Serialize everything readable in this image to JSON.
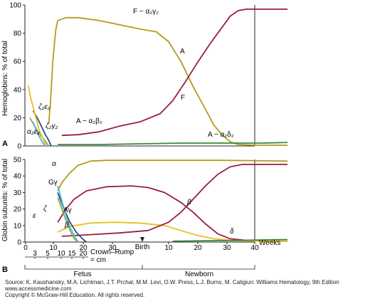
{
  "panels": {
    "a_label": "A",
    "b_label": "B"
  },
  "chart_data": [
    {
      "type": "line",
      "panel": "A",
      "ylabel": "Hemoglobins: % of total",
      "ylim": [
        0,
        100
      ],
      "yticks": [
        "0",
        "20",
        "40",
        "60",
        "80",
        "100"
      ],
      "series": [
        {
          "label": "F − α₂γ₂",
          "color": "#b79a1c",
          "points": [
            [
              -2.2,
              16
            ],
            [
              -1.8,
              30
            ],
            [
              -1.2,
              60
            ],
            [
              -0.5,
              82
            ],
            [
              0,
              89
            ],
            [
              2,
              91
            ],
            [
              5,
              91
            ],
            [
              10,
              89
            ],
            [
              15,
              86
            ],
            [
              20,
              83
            ],
            [
              24,
              81
            ],
            [
              27,
              74
            ],
            [
              30,
              60
            ],
            [
              33,
              42
            ],
            [
              36,
              26
            ],
            [
              38,
              15
            ],
            [
              40,
              8
            ],
            [
              42,
              3
            ],
            [
              44,
              1
            ],
            [
              48,
              0.5
            ],
            [
              52,
              0.5
            ],
            [
              56,
              0.5
            ]
          ]
        },
        {
          "label": "A",
          "color": "#9b1b4a",
          "points": [
            [
              1,
              7.5
            ],
            [
              5,
              8
            ],
            [
              10,
              10
            ],
            [
              15,
              14
            ],
            [
              20,
              17
            ],
            [
              25,
              23
            ],
            [
              28,
              32
            ],
            [
              31,
              45
            ],
            [
              34,
              59
            ],
            [
              37,
              72
            ],
            [
              40,
              84
            ],
            [
              42,
              92
            ],
            [
              44,
              96
            ],
            [
              46,
              97
            ],
            [
              56,
              97
            ]
          ]
        },
        {
          "label": "A − α₂β₂",
          "color": "#9b1b4a",
          "points": []
        },
        {
          "label": "A − α₂δ₂",
          "color": "#3a8a3a",
          "points": [
            [
              0,
              1
            ],
            [
              10,
              1
            ],
            [
              20,
              1.5
            ],
            [
              30,
              2
            ],
            [
              40,
              2
            ],
            [
              50,
              2
            ],
            [
              56,
              2.5
            ]
          ]
        },
        {
          "label": "ζ₂ε₂",
          "color": "#2b4d8a",
          "points": [
            [
              -6,
              25
            ],
            [
              -5,
              20
            ],
            [
              -4,
              14
            ],
            [
              -3,
              8
            ],
            [
              -2.2,
              4
            ],
            [
              -1.6,
              0
            ]
          ]
        },
        {
          "label": "ζ₂γ₂",
          "color": "#8ea94a",
          "points": [
            [
              -6.8,
              20
            ],
            [
              -5.8,
              15
            ],
            [
              -4.6,
              9
            ],
            [
              -3.2,
              4
            ],
            [
              -2.2,
              0
            ]
          ]
        },
        {
          "label": "α₂ε₂",
          "color": "#e8c020",
          "points": [
            [
              -7.2,
              43
            ],
            [
              -6.5,
              33
            ],
            [
              -5.5,
              22
            ],
            [
              -4.6,
              12
            ],
            [
              -3.6,
              5
            ],
            [
              -2.8,
              0
            ]
          ]
        },
        {
          "label": "",
          "color": "#55b6d6",
          "points": [
            [
              -6,
              17
            ],
            [
              -5.2,
              11
            ],
            [
              -4.4,
              6
            ],
            [
              -3.6,
              2
            ],
            [
              -3,
              0
            ]
          ]
        }
      ]
    },
    {
      "type": "line",
      "panel": "B",
      "ylabel": "Globin subunits: % of total",
      "ylim": [
        0,
        50
      ],
      "yticks": [
        "0",
        "10",
        "20",
        "30",
        "40",
        "50"
      ],
      "xticks": [
        "0",
        "10",
        "20",
        "30",
        "Birth",
        "10",
        "20",
        "30",
        "40"
      ],
      "xunit": "Weeks",
      "fetal_ticks": [
        "3",
        "5",
        "10",
        "15",
        "20"
      ],
      "crown_rump": {
        "line1": "Crown–Rump",
        "line2": "= cm"
      },
      "periods": [
        "Fetus",
        "Newborn"
      ],
      "series": [
        {
          "label": "α",
          "color": "#b79a1c",
          "points": [
            [
              0,
              31
            ],
            [
              1,
              36
            ],
            [
              3,
              42
            ],
            [
              5,
              46.5
            ],
            [
              8,
              49
            ],
            [
              12,
              49.5
            ],
            [
              20,
              49.5
            ],
            [
              40,
              49.5
            ],
            [
              56,
              49
            ]
          ]
        },
        {
          "label": "Gγ",
          "color": "#9b1b4a",
          "points": [
            [
              0,
              12
            ],
            [
              2,
              20
            ],
            [
              4,
              26
            ],
            [
              7,
              31
            ],
            [
              12,
              33.5
            ],
            [
              18,
              34
            ],
            [
              22,
              33
            ],
            [
              26,
              30
            ],
            [
              30,
              24
            ],
            [
              33,
              18
            ],
            [
              36,
              11
            ],
            [
              39,
              5
            ],
            [
              42,
              2
            ],
            [
              46,
              1
            ],
            [
              50,
              0.5
            ],
            [
              56,
              0.5
            ]
          ]
        },
        {
          "label": "Aγ",
          "color": "#e8c020",
          "points": [
            [
              0,
              6
            ],
            [
              3,
              9.5
            ],
            [
              8,
              11.5
            ],
            [
              14,
              12
            ],
            [
              20,
              11.5
            ],
            [
              26,
              10
            ],
            [
              30,
              7
            ],
            [
              34,
              4
            ],
            [
              38,
              2
            ],
            [
              42,
              1
            ],
            [
              50,
              0.5
            ],
            [
              56,
              0.5
            ]
          ]
        },
        {
          "label": "β",
          "color": "#9b1b4a",
          "points": [
            [
              1,
              3.5
            ],
            [
              8,
              4.5
            ],
            [
              15,
              5.5
            ],
            [
              22,
              7
            ],
            [
              27,
              12
            ],
            [
              30,
              18
            ],
            [
              33,
              26
            ],
            [
              36,
              34
            ],
            [
              39,
              41
            ],
            [
              42,
              45.5
            ],
            [
              45,
              47
            ],
            [
              56,
              47
            ]
          ]
        },
        {
          "label": "δ",
          "color": "#3a8a3a",
          "points": [
            [
              28,
              0.5
            ],
            [
              36,
              0.8
            ],
            [
              44,
              1
            ],
            [
              50,
              1.3
            ],
            [
              56,
              1.5
            ]
          ]
        },
        {
          "label": "ζ",
          "color": "#2b4d8a",
          "points": [
            [
              0,
              30
            ],
            [
              1.5,
              20
            ],
            [
              3,
              12
            ],
            [
              4.5,
              6
            ],
            [
              6,
              2
            ],
            [
              7,
              0
            ]
          ]
        },
        {
          "label": "ε",
          "color": "#55b6d6",
          "points": [
            [
              0,
              34
            ],
            [
              1,
              25
            ],
            [
              2,
              16
            ],
            [
              3,
              9
            ],
            [
              4.2,
              3
            ],
            [
              5,
              0
            ]
          ]
        },
        {
          "label": "",
          "color": "#8ea94a",
          "points": [
            [
              0,
              27
            ],
            [
              1,
              20
            ],
            [
              2,
              13
            ],
            [
              3,
              7
            ],
            [
              4,
              2
            ],
            [
              5,
              0
            ]
          ]
        }
      ]
    }
  ],
  "source": {
    "line1": "Source: K. Kaushansky, M.A. Lichtman, J.T. Prchal, M.M. Levi, O.W. Press, L.J. Burns, M. Caligiuri: Williams Hematology, 9th Edition",
    "line2": "www.accessmedicine.com",
    "line3": "Copyright © McGraw-Hill Education. All rights reserved."
  }
}
